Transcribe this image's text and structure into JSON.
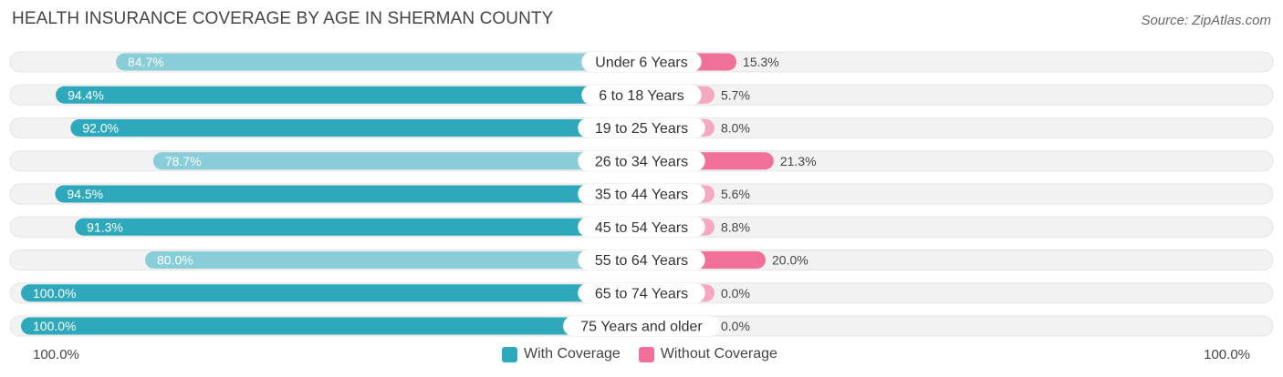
{
  "title": "HEALTH INSURANCE COVERAGE BY AGE IN SHERMAN COUNTY",
  "source": "Source: ZipAtlas.com",
  "colors": {
    "with_dark": "#2ea9bb",
    "with_light": "#88cdd8",
    "without_dark": "#f07098",
    "without_light": "#f6a8c1",
    "track": "#f2f2f2"
  },
  "chart_data": {
    "type": "bar",
    "title": "HEALTH INSURANCE COVERAGE BY AGE IN SHERMAN COUNTY",
    "categories": [
      "Under 6 Years",
      "6 to 18 Years",
      "19 to 25 Years",
      "26 to 34 Years",
      "35 to 44 Years",
      "45 to 54 Years",
      "55 to 64 Years",
      "65 to 74 Years",
      "75 Years and older"
    ],
    "series": [
      {
        "name": "With Coverage",
        "values": [
          84.7,
          94.4,
          92.0,
          78.7,
          94.5,
          91.3,
          80.0,
          100.0,
          100.0
        ],
        "labels": [
          "84.7%",
          "94.4%",
          "92.0%",
          "78.7%",
          "94.5%",
          "91.3%",
          "80.0%",
          "100.0%",
          "100.0%"
        ]
      },
      {
        "name": "Without Coverage",
        "values": [
          15.3,
          5.7,
          8.0,
          21.3,
          5.6,
          8.8,
          20.0,
          0.0,
          0.0
        ],
        "labels": [
          "15.3%",
          "5.7%",
          "8.0%",
          "21.3%",
          "5.6%",
          "8.8%",
          "20.0%",
          "0.0%",
          "0.0%"
        ]
      }
    ],
    "xlim": [
      0,
      100
    ],
    "axis_left_label": "100.0%",
    "axis_right_label": "100.0%",
    "legend": [
      "With Coverage",
      "Without Coverage"
    ],
    "legend_position": "bottom-center"
  }
}
